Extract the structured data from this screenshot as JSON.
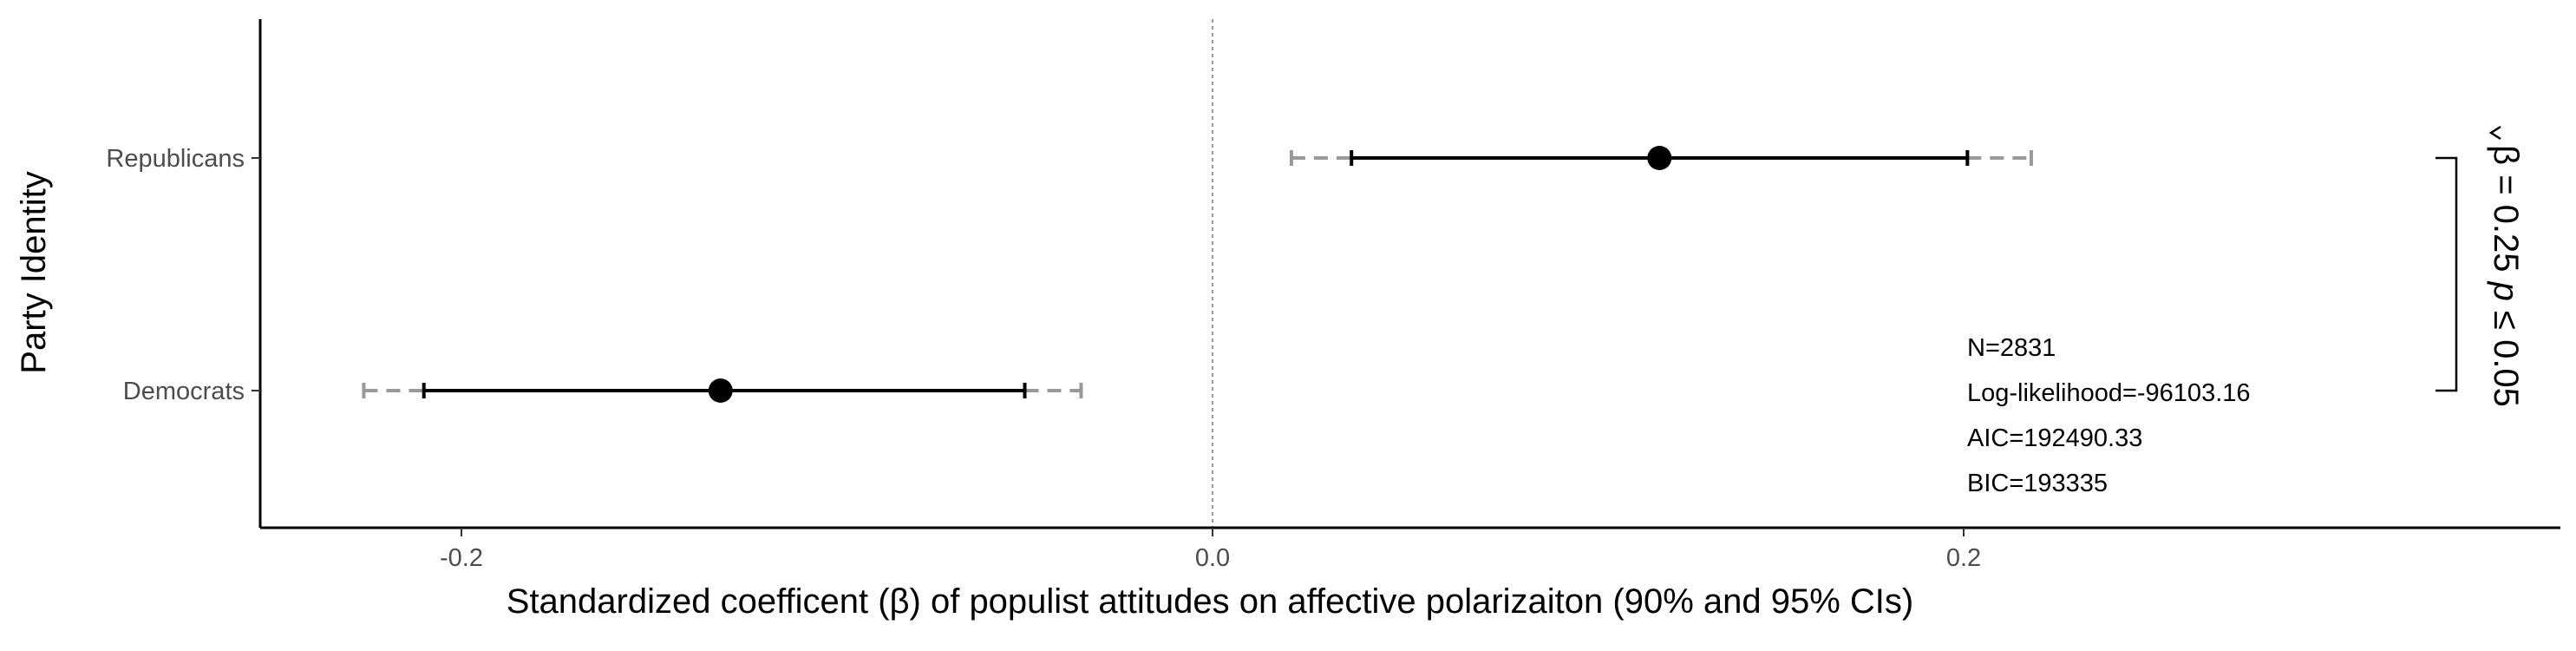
{
  "chart_data": {
    "type": "forest",
    "xlabel": "Standardized coefficent (β) of populist attitudes on affective polarizaiton (90% and 95% CIs)",
    "ylabel": "Party Identity",
    "xlim": [
      -0.26,
      0.35
    ],
    "x_ticks": [
      -0.2,
      0.0,
      0.2
    ],
    "x_tick_labels": [
      "-0.2",
      "0.0",
      "0.2"
    ],
    "reference_line_x": 0,
    "categories": [
      "Republicans",
      "Democrats"
    ],
    "estimates": [
      {
        "category": "Republicans",
        "estimate": 0.119,
        "ci90": [
          0.037,
          0.201
        ],
        "ci95": [
          0.021,
          0.218
        ]
      },
      {
        "category": "Democrats",
        "estimate": -0.131,
        "ci90": [
          -0.21,
          -0.05
        ],
        "ci95": [
          -0.226,
          -0.035
        ]
      }
    ],
    "stats": [
      "N=2831",
      "Log-likelihood=-96103.16",
      "AIC=192490.33",
      "BIC=193335"
    ],
    "bracket": {
      "beta": "β",
      "value_text": " = 0.25 ",
      "p": "p",
      "p_text": " ≤ 0.05"
    },
    "colors": {
      "point": "#000000",
      "ci90": "#000000",
      "ci95": "#999999",
      "reference": "#999999",
      "axis": "#000000"
    }
  }
}
